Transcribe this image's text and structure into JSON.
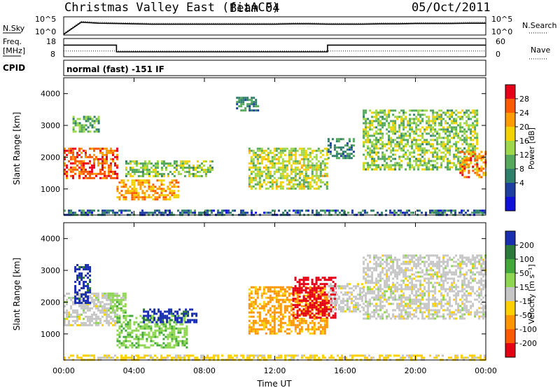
{
  "header": {
    "title": "Christmas Valley East (fitACF)",
    "beam": "Beam 04",
    "date": "05/Oct/2011"
  },
  "panels": {
    "nsky_label": "N.Sky",
    "nsky_ticks": [
      "10^5",
      "10^0"
    ],
    "nsearch_label": "N.Search",
    "nsearch_ticks": [
      "10^5",
      "10^0"
    ],
    "freq_label": "Freq.",
    "freq_unit": "[MHz]",
    "freq_ticks": [
      "18",
      "8"
    ],
    "nave_label": "Nave",
    "nave_ticks": [
      "60",
      "0"
    ],
    "cpid_label": "CPID",
    "cpid_mode": "normal (fast) -151 IF"
  },
  "colorbars": {
    "power_label": "Power [dB]",
    "power_ticks": [
      "28",
      "24",
      "20",
      "16",
      "12",
      "8",
      "4"
    ],
    "power_colors": [
      "#e8001a",
      "#ff5a00",
      "#ff9d00",
      "#f2d200",
      "#9ed84a",
      "#55a85c",
      "#2f7f6a",
      "#1f3fa0",
      "#1010d8"
    ],
    "velocity_label": "Velocity [m s⁻¹]",
    "velocity_ticks": [
      "200",
      "100",
      "50",
      "15",
      "-15",
      "-50",
      "-100",
      "-200"
    ],
    "velocity_colors": [
      "#1a2fb0",
      "#2c7a3a",
      "#43a83a",
      "#8ed651",
      "#c6c6c6",
      "#ffd000",
      "#ff9500",
      "#ff5a00",
      "#e50015"
    ]
  },
  "chart_data": [
    {
      "type": "line",
      "panel": "sky-noise",
      "x_range": [
        "00:00",
        "24:00"
      ],
      "ylim": [
        "10^0",
        "10^5"
      ],
      "note": "",
      "series": [
        {
          "values_log10": [
            0.0,
            3.6,
            3.3,
            3.2,
            3.1,
            3.0,
            3.0,
            3.0,
            3.0,
            3.0,
            3.0,
            3.0,
            3.0,
            3.1,
            3.1,
            3.0,
            3.0,
            3.0,
            3.1,
            3.1,
            3.2,
            3.2,
            3.2,
            3.3,
            3.3
          ]
        }
      ]
    },
    {
      "type": "line",
      "panel": "frequency",
      "x_hours": [
        0,
        3,
        3,
        15,
        15,
        24
      ],
      "freq_mhz": [
        14.5,
        14.5,
        10.5,
        10.5,
        14.5,
        14.5
      ],
      "nave": [
        18,
        18,
        18,
        18,
        18,
        18
      ],
      "ylim": [
        8,
        18
      ]
    },
    {
      "type": "heatmap",
      "panel": "power",
      "xlabel": "",
      "ylabel": "Slant Range [km]",
      "xlim": [
        0,
        24
      ],
      "ylim": [
        180,
        4500
      ],
      "x_ticks": [
        "00:00",
        "04:00",
        "08:00",
        "12:00",
        "16:00",
        "20:00",
        "00:00"
      ],
      "y_ticks": [
        1000,
        2000,
        3000,
        4000
      ],
      "colorbar_range_db": [
        0,
        30
      ],
      "regions": [
        {
          "t": [
            0.0,
            3.0
          ],
          "r": [
            1350,
            2300
          ],
          "db": 26
        },
        {
          "t": [
            0.5,
            2.0
          ],
          "r": [
            2800,
            3300
          ],
          "db": 12
        },
        {
          "t": [
            3.0,
            6.5
          ],
          "r": [
            700,
            1300
          ],
          "db": 22
        },
        {
          "t": [
            3.5,
            8.5
          ],
          "r": [
            1400,
            1900
          ],
          "db": 14
        },
        {
          "t": [
            9.8,
            11.0
          ],
          "r": [
            3500,
            3900
          ],
          "db": 8
        },
        {
          "t": [
            10.5,
            15.0
          ],
          "r": [
            1000,
            2300
          ],
          "db": 16
        },
        {
          "t": [
            15.0,
            16.5
          ],
          "r": [
            2000,
            2600
          ],
          "db": 8
        },
        {
          "t": [
            17.0,
            23.5
          ],
          "r": [
            1600,
            3500
          ],
          "db": 14
        },
        {
          "t": [
            22.5,
            24.0
          ],
          "r": [
            1400,
            2200
          ],
          "db": 24
        },
        {
          "t": [
            0.0,
            24.0
          ],
          "r": [
            180,
            350
          ],
          "db": 6
        }
      ]
    },
    {
      "type": "heatmap",
      "panel": "velocity",
      "xlabel": "Time UT",
      "ylabel": "Slant Range [km]",
      "xlim": [
        0,
        24
      ],
      "ylim": [
        180,
        4500
      ],
      "x_ticks": [
        "00:00",
        "04:00",
        "08:00",
        "12:00",
        "16:00",
        "20:00",
        "00:00"
      ],
      "y_ticks": [
        1000,
        2000,
        3000,
        4000
      ],
      "colorbar_range_ms": [
        -200,
        200
      ],
      "regions": [
        {
          "t": [
            0.0,
            3.0
          ],
          "r": [
            1300,
            2300
          ],
          "vel": 0
        },
        {
          "t": [
            0.6,
            1.5
          ],
          "r": [
            2000,
            3200
          ],
          "vel": 200
        },
        {
          "t": [
            2.5,
            3.5
          ],
          "r": [
            1700,
            2300
          ],
          "vel": 50
        },
        {
          "t": [
            3.0,
            7.0
          ],
          "r": [
            600,
            1600
          ],
          "vel": 60
        },
        {
          "t": [
            4.5,
            7.5
          ],
          "r": [
            1400,
            1800
          ],
          "vel": 200
        },
        {
          "t": [
            10.5,
            15.0
          ],
          "r": [
            1000,
            2500
          ],
          "vel": -90
        },
        {
          "t": [
            13.0,
            15.5
          ],
          "r": [
            1500,
            2800
          ],
          "vel": -220
        },
        {
          "t": [
            15.0,
            17.0
          ],
          "r": [
            1700,
            2600
          ],
          "vel": 0
        },
        {
          "t": [
            17.0,
            24.0
          ],
          "r": [
            1500,
            3500
          ],
          "vel": 0
        },
        {
          "t": [
            0.0,
            24.0
          ],
          "r": [
            180,
            350
          ],
          "vel": -40
        }
      ]
    }
  ]
}
